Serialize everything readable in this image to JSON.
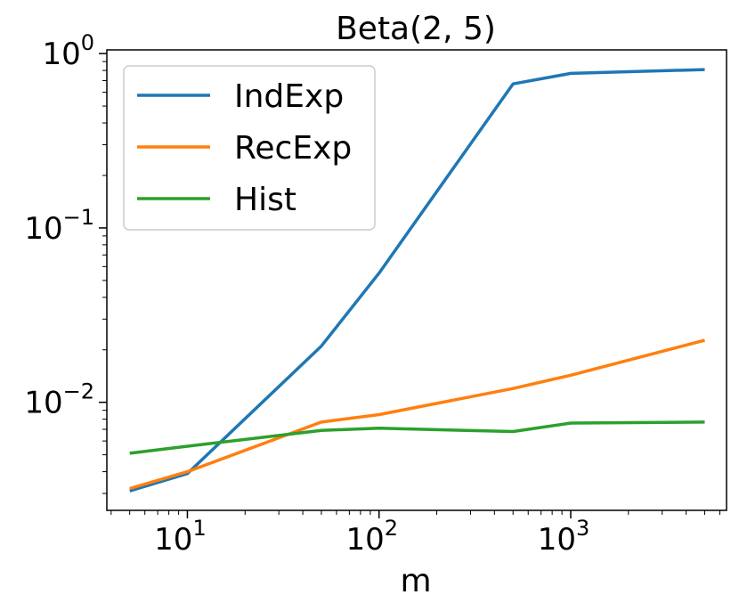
{
  "chart_data": {
    "type": "line",
    "title": "Beta(2, 5)",
    "xlabel": "m",
    "ylabel": "",
    "xscale": "log",
    "yscale": "log",
    "xlim": [
      3.8,
      6500
    ],
    "ylim": [
      0.0024,
      1.05
    ],
    "xticks": [
      {
        "base": "10",
        "exp": "1",
        "value": 10
      },
      {
        "base": "10",
        "exp": "2",
        "value": 100
      },
      {
        "base": "10",
        "exp": "3",
        "value": 1000
      }
    ],
    "yticks": [
      {
        "base": "10",
        "exp": "−2",
        "value": 0.01
      },
      {
        "base": "10",
        "exp": "−1",
        "value": 0.1
      },
      {
        "base": "10",
        "exp": "0",
        "value": 1
      }
    ],
    "legend_position": "upper-left",
    "grid": false,
    "series": [
      {
        "name": "IndExp",
        "color": "#1f77b4",
        "x": [
          5,
          10,
          50,
          100,
          500,
          1000,
          5000
        ],
        "y": [
          0.0031,
          0.0039,
          0.021,
          0.055,
          0.67,
          0.77,
          0.81
        ]
      },
      {
        "name": "RecExp",
        "color": "#ff7f0e",
        "x": [
          5,
          10,
          50,
          100,
          500,
          1000,
          5000
        ],
        "y": [
          0.0032,
          0.004,
          0.0077,
          0.0085,
          0.012,
          0.0143,
          0.0227
        ]
      },
      {
        "name": "Hist",
        "color": "#2ca02c",
        "x": [
          5,
          10,
          50,
          100,
          500,
          1000,
          5000
        ],
        "y": [
          0.0051,
          0.0056,
          0.0069,
          0.0071,
          0.0068,
          0.0076,
          0.0077
        ]
      }
    ]
  }
}
